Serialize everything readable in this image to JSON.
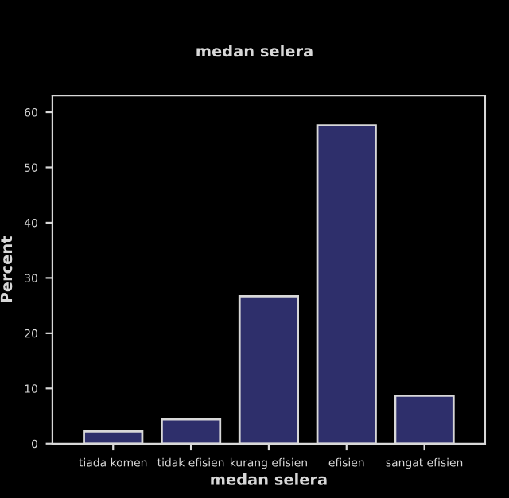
{
  "chart_data": {
    "type": "bar",
    "title": "medan selera",
    "xlabel": "medan selera",
    "ylabel": "Percent",
    "categories": [
      "tiada komen",
      "tidak efisien",
      "kurang efisien",
      "efisien",
      "sangat efisien"
    ],
    "values": [
      2.2,
      4.4,
      26.7,
      57.6,
      8.7
    ],
    "color": "#2e2f6b",
    "ylim": [
      0,
      63
    ],
    "yticks": [
      0,
      10,
      20,
      30,
      40,
      50,
      60
    ],
    "grid": false
  }
}
